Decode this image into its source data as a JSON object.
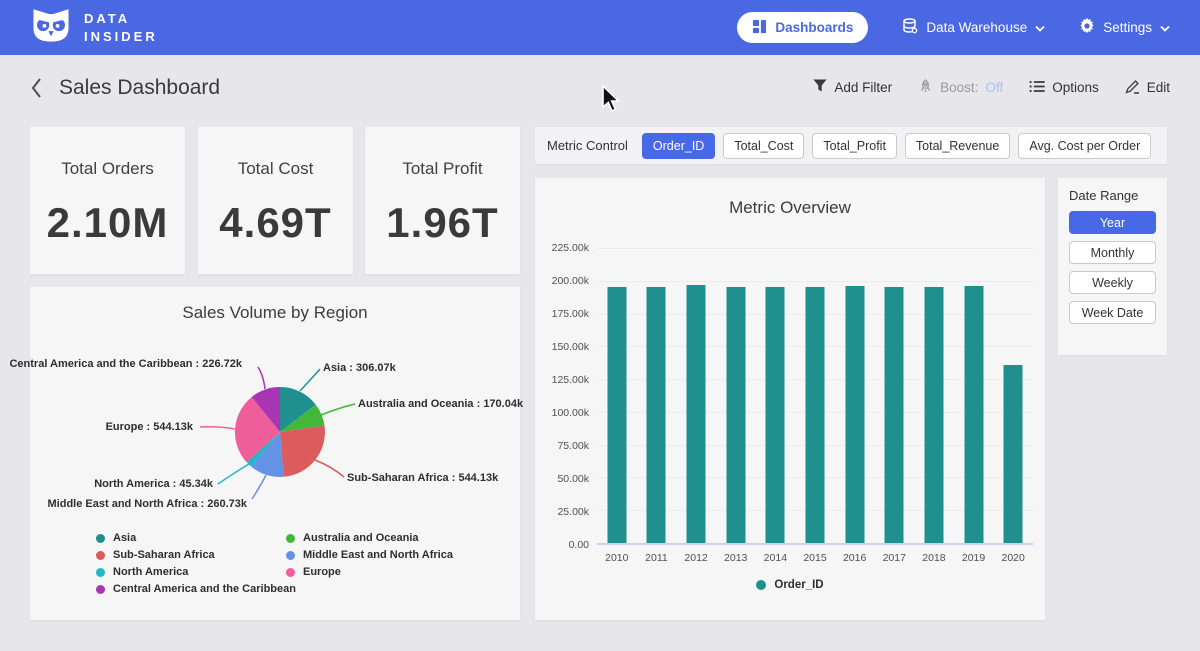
{
  "navbar": {
    "brand": {
      "line1": "DATA",
      "line2": "INSIDER"
    },
    "dashboards_label": "Dashboards",
    "data_warehouse_label": "Data Warehouse",
    "settings_label": "Settings"
  },
  "header": {
    "title": "Sales Dashboard",
    "add_filter_label": "Add Filter",
    "boost_label": "Boost:",
    "boost_value": "Off",
    "options_label": "Options",
    "edit_label": "Edit"
  },
  "kpis": [
    {
      "label": "Total Orders",
      "value": "2.10M"
    },
    {
      "label": "Total Cost",
      "value": "4.69T"
    },
    {
      "label": "Total Profit",
      "value": "1.96T"
    }
  ],
  "metric_control": {
    "label": "Metric Control",
    "buttons": [
      {
        "label": "Order_ID",
        "selected": true
      },
      {
        "label": "Total_Cost",
        "selected": false
      },
      {
        "label": "Total_Profit",
        "selected": false
      },
      {
        "label": "Total_Revenue",
        "selected": false
      },
      {
        "label": "Avg. Cost per Order",
        "selected": false
      }
    ]
  },
  "date_range": {
    "label": "Date Range",
    "buttons": [
      {
        "label": "Year",
        "selected": true
      },
      {
        "label": "Monthly",
        "selected": false
      },
      {
        "label": "Weekly",
        "selected": false
      },
      {
        "label": "Week Date",
        "selected": false
      }
    ]
  },
  "colors": {
    "navbar_blue": "#4a68e2",
    "accent_blue": "#4769e8",
    "bar_teal": "#20908e",
    "page_bg": "#e6e6eb",
    "card_bg": "#f6f6f7"
  },
  "chart_data": [
    {
      "type": "bar",
      "title": "Metric Overview",
      "categories": [
        "2010",
        "2011",
        "2012",
        "2013",
        "2014",
        "2015",
        "2016",
        "2017",
        "2018",
        "2019",
        "2020"
      ],
      "series": [
        {
          "name": "Order_ID",
          "color": "#20908e",
          "values": [
            195.5,
            195.4,
            196.6,
            195.2,
            195.4,
            195.5,
            196.2,
            195.4,
            195.5,
            195.8,
            135.9
          ]
        }
      ],
      "unit": "k",
      "ymax": 225,
      "ylim": [
        0,
        225
      ],
      "yticks": [
        "225.00k",
        "200.00k",
        "175.00k",
        "150.00k",
        "125.00k",
        "100.00k",
        "75.00k",
        "50.00k",
        "25.00k",
        "0.00"
      ],
      "grid": true,
      "legend_position": "bottom"
    },
    {
      "type": "pie",
      "title": "Sales Volume by Region",
      "unit": "k",
      "slices": [
        {
          "label": "Asia",
          "value": 306.07,
          "display": "Asia : 306.07k",
          "color": "#20908e"
        },
        {
          "label": "Australia and Oceania",
          "value": 170.04,
          "display": "Australia and Oceania : 170.04k",
          "color": "#41b83a"
        },
        {
          "label": "Sub-Saharan Africa",
          "value": 544.13,
          "display": "Sub-Saharan Africa : 544.13k",
          "color": "#dc5b5c"
        },
        {
          "label": "Middle East and North Africa",
          "value": 260.73,
          "display": "Middle East and North Africa : 260.73k",
          "color": "#6493e6"
        },
        {
          "label": "North America",
          "value": 45.34,
          "display": "North America : 45.34k",
          "color": "#21b7c8"
        },
        {
          "label": "Europe",
          "value": 544.13,
          "display": "Europe : 544.13k",
          "color": "#ee5e9a"
        },
        {
          "label": "Central America and the Caribbean",
          "value": 226.72,
          "display": "Central America and the Caribbean : 226.72k",
          "color": "#a835b2"
        }
      ],
      "legend_position": "bottom"
    }
  ]
}
